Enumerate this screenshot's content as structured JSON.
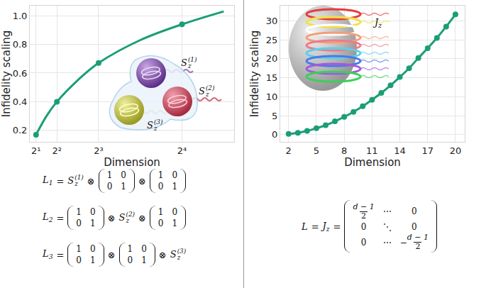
{
  "chart_data": [
    {
      "type": "line",
      "xlabel": "Dimension",
      "ylabel": "Infidelity scaling",
      "xlim": [
        1.4,
        21
      ],
      "ylim": [
        0.12,
        1.07
      ],
      "xticks": [
        {
          "value": 2,
          "label": "2¹"
        },
        {
          "value": 4,
          "label": "2²"
        },
        {
          "value": 8,
          "label": "2³"
        },
        {
          "value": 16,
          "label": "2⁴"
        }
      ],
      "yticks": [
        0.2,
        0.4,
        0.6,
        0.8,
        {
          "value": 1,
          "label": "1.0"
        }
      ],
      "grid": true,
      "series": [
        {
          "type": "line",
          "color": "#1b9e77",
          "line_style": "solid",
          "x": [
            2,
            3,
            4,
            6,
            8,
            12,
            16,
            20
          ],
          "values": [
            0.17,
            0.3,
            0.4,
            0.55,
            0.67,
            0.83,
            0.94,
            1.03
          ]
        },
        {
          "type": "scatter",
          "color": "#1b9e77",
          "marker": "circle",
          "x": [
            2,
            4,
            8,
            16
          ],
          "values": [
            0.17,
            0.4,
            0.67,
            0.94
          ]
        }
      ]
    },
    {
      "type": "line",
      "xlabel": "Dimension",
      "ylabel": "Infidelity scaling",
      "xlim": [
        1.1,
        21
      ],
      "ylim": [
        -1.9,
        34
      ],
      "xticks": [
        2,
        5,
        8,
        11,
        14,
        17,
        20
      ],
      "yticks": [
        0,
        5,
        10,
        15,
        20,
        25,
        30
      ],
      "grid": true,
      "series": [
        {
          "type": "line",
          "color": "#1b9e77",
          "marker": "circle",
          "line_style": "solid",
          "x": [
            2,
            3,
            4,
            5,
            6,
            7,
            8,
            9,
            10,
            11,
            12,
            13,
            14,
            15,
            16,
            17,
            18,
            19,
            20
          ],
          "values": [
            0.2,
            0.5,
            1.0,
            1.7,
            2.5,
            3.5,
            4.7,
            6.0,
            7.5,
            9.2,
            11.0,
            13.0,
            15.2,
            17.5,
            20.2,
            22.8,
            25.5,
            28.5,
            31.7
          ]
        }
      ]
    }
  ],
  "illustration_labels": {
    "left": [
      {
        "base": "S",
        "sub": "z",
        "sup": "(1)"
      },
      {
        "base": "S",
        "sub": "z",
        "sup": "(2)"
      },
      {
        "base": "S",
        "sub": "z",
        "sup": "(3)"
      }
    ],
    "right": {
      "base": "J",
      "sub": "z"
    }
  },
  "equations": {
    "left": [
      [
        {
          "base": "L",
          "sub": "1"
        },
        "=",
        {
          "base": "S",
          "sub": "z",
          "sup": "(1)"
        },
        "⊗",
        {
          "matrix": [
            [
              "1",
              "0"
            ],
            [
              "0",
              "1"
            ]
          ]
        },
        "⊗",
        {
          "matrix": [
            [
              "1",
              "0"
            ],
            [
              "0",
              "1"
            ]
          ]
        }
      ],
      [
        {
          "base": "L",
          "sub": "2"
        },
        "=",
        {
          "matrix": [
            [
              "1",
              "0"
            ],
            [
              "0",
              "1"
            ]
          ]
        },
        "⊗",
        {
          "base": "S",
          "sub": "z",
          "sup": "(2)"
        },
        "⊗",
        {
          "matrix": [
            [
              "1",
              "0"
            ],
            [
              "0",
              "1"
            ]
          ]
        }
      ],
      [
        {
          "base": "L",
          "sub": "3"
        },
        "=",
        {
          "matrix": [
            [
              "1",
              "0"
            ],
            [
              "0",
              "1"
            ]
          ]
        },
        "⊗",
        {
          "matrix": [
            [
              "1",
              "0"
            ],
            [
              "0",
              "1"
            ]
          ]
        },
        "⊗",
        {
          "base": "S",
          "sub": "z",
          "sup": "(3)"
        }
      ]
    ],
    "right": [
      [
        {
          "base": "L"
        },
        "=",
        {
          "base": "J",
          "sub": "z"
        },
        "=",
        {
          "matrix": [
            [
              {
                "num": "d − 1",
                "den": "2"
              },
              "⋯",
              "0"
            ],
            [
              "0",
              "⋱",
              "0"
            ],
            [
              "0",
              "⋯",
              {
                "sign": "−",
                "num": "d − 1",
                "den": "2"
              }
            ]
          ]
        }
      ]
    ]
  }
}
